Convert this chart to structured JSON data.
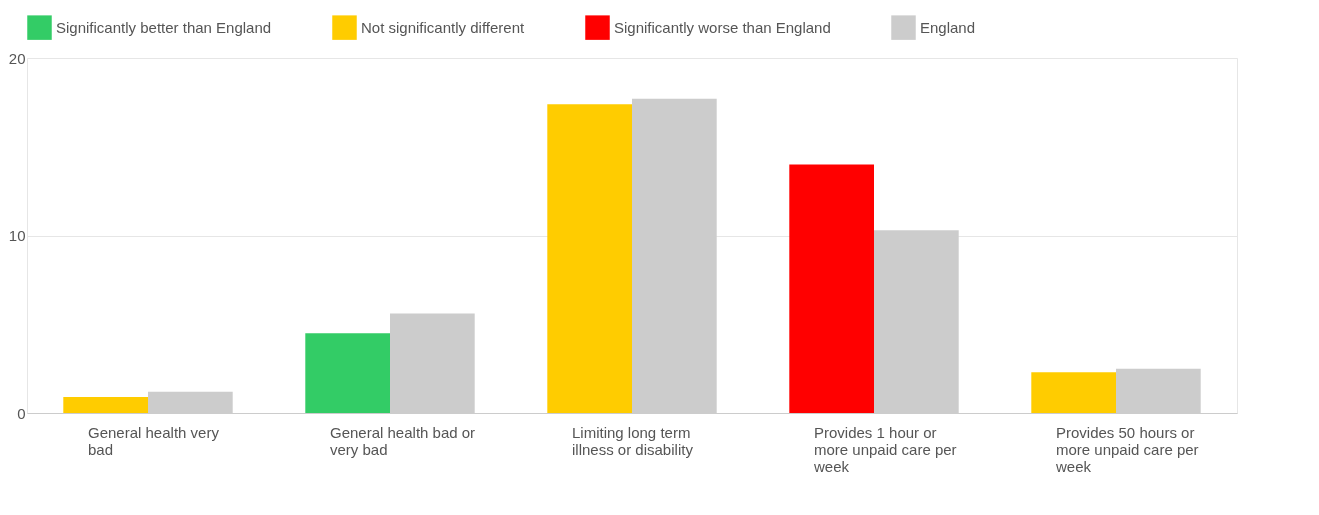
{
  "chart_data": {
    "type": "bar",
    "categories": [
      "General health very bad",
      "General health bad or very bad",
      "Limiting long term illness or disability",
      "Provides 1 hour or more unpaid care per week",
      "Provides 50 hours or more unpaid care per week"
    ],
    "series": [
      {
        "name": "Significantly better than England",
        "color": "#33cc66",
        "values": [
          null,
          4.5,
          null,
          null,
          null
        ]
      },
      {
        "name": "Not significantly different",
        "color": "#ffcc00",
        "values": [
          0.9,
          null,
          17.4,
          null,
          2.3
        ]
      },
      {
        "name": "Significantly worse than England",
        "color": "#ff0000",
        "values": [
          null,
          null,
          null,
          14.0,
          null
        ]
      },
      {
        "name": "England",
        "color": "#cccccc",
        "values": [
          1.2,
          5.6,
          17.7,
          10.3,
          2.5
        ]
      }
    ],
    "ylim": [
      0,
      20
    ],
    "yticks": [
      0,
      10,
      20
    ],
    "grid": "y",
    "legend": "top"
  }
}
